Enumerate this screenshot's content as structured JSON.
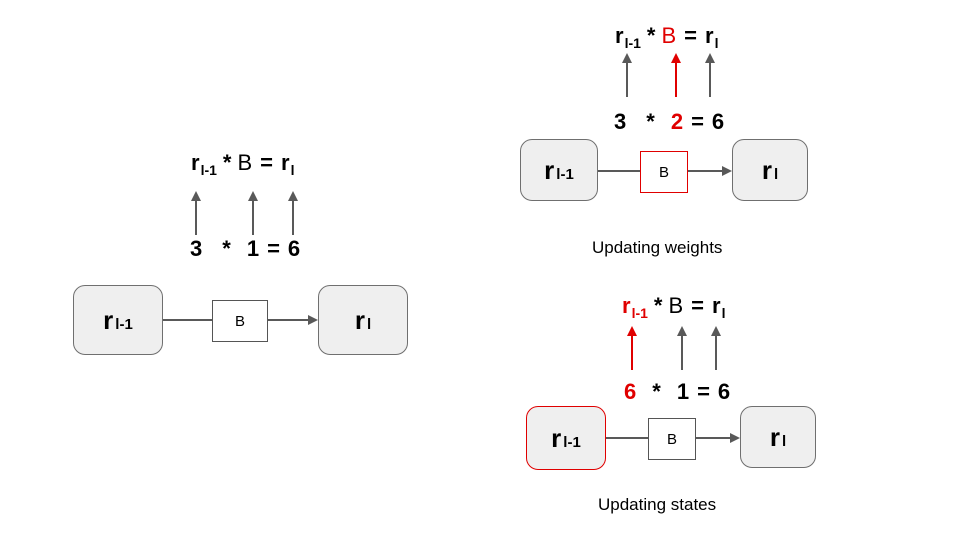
{
  "colors": {
    "accent": "#e00000",
    "arrow": "#595959",
    "node_fill": "#efefef"
  },
  "node_labels": {
    "prev_main": "r",
    "prev_sub": "l-1",
    "next_main": "r",
    "next_sub": "l",
    "weight": "B"
  },
  "left_panel": {
    "equation": {
      "r1": "r",
      "r1_sub": "l-1",
      "op_mul": "*",
      "B": "B",
      "op_eq": "=",
      "r2": "r",
      "r2_sub": "l"
    },
    "numbers": {
      "a": "3",
      "op_mul": "*",
      "b": "1",
      "op_eq": "=",
      "c": "6"
    }
  },
  "top_right_panel": {
    "equation": {
      "r1": "r",
      "r1_sub": "l-1",
      "op_mul": "*",
      "B": "B",
      "op_eq": "=",
      "r2": "r",
      "r2_sub": "l"
    },
    "numbers": {
      "a": "3",
      "op_mul": "*",
      "b": "2",
      "op_eq": "=",
      "c": "6"
    },
    "caption": "Updating weights"
  },
  "bottom_right_panel": {
    "equation": {
      "r1": "r",
      "r1_sub": "l-1",
      "op_mul": "*",
      "B": "B",
      "op_eq": "=",
      "r2": "r",
      "r2_sub": "l"
    },
    "numbers": {
      "a": "6",
      "op_mul": "*",
      "b": "1",
      "op_eq": "=",
      "c": "6"
    },
    "caption": "Updating states"
  }
}
